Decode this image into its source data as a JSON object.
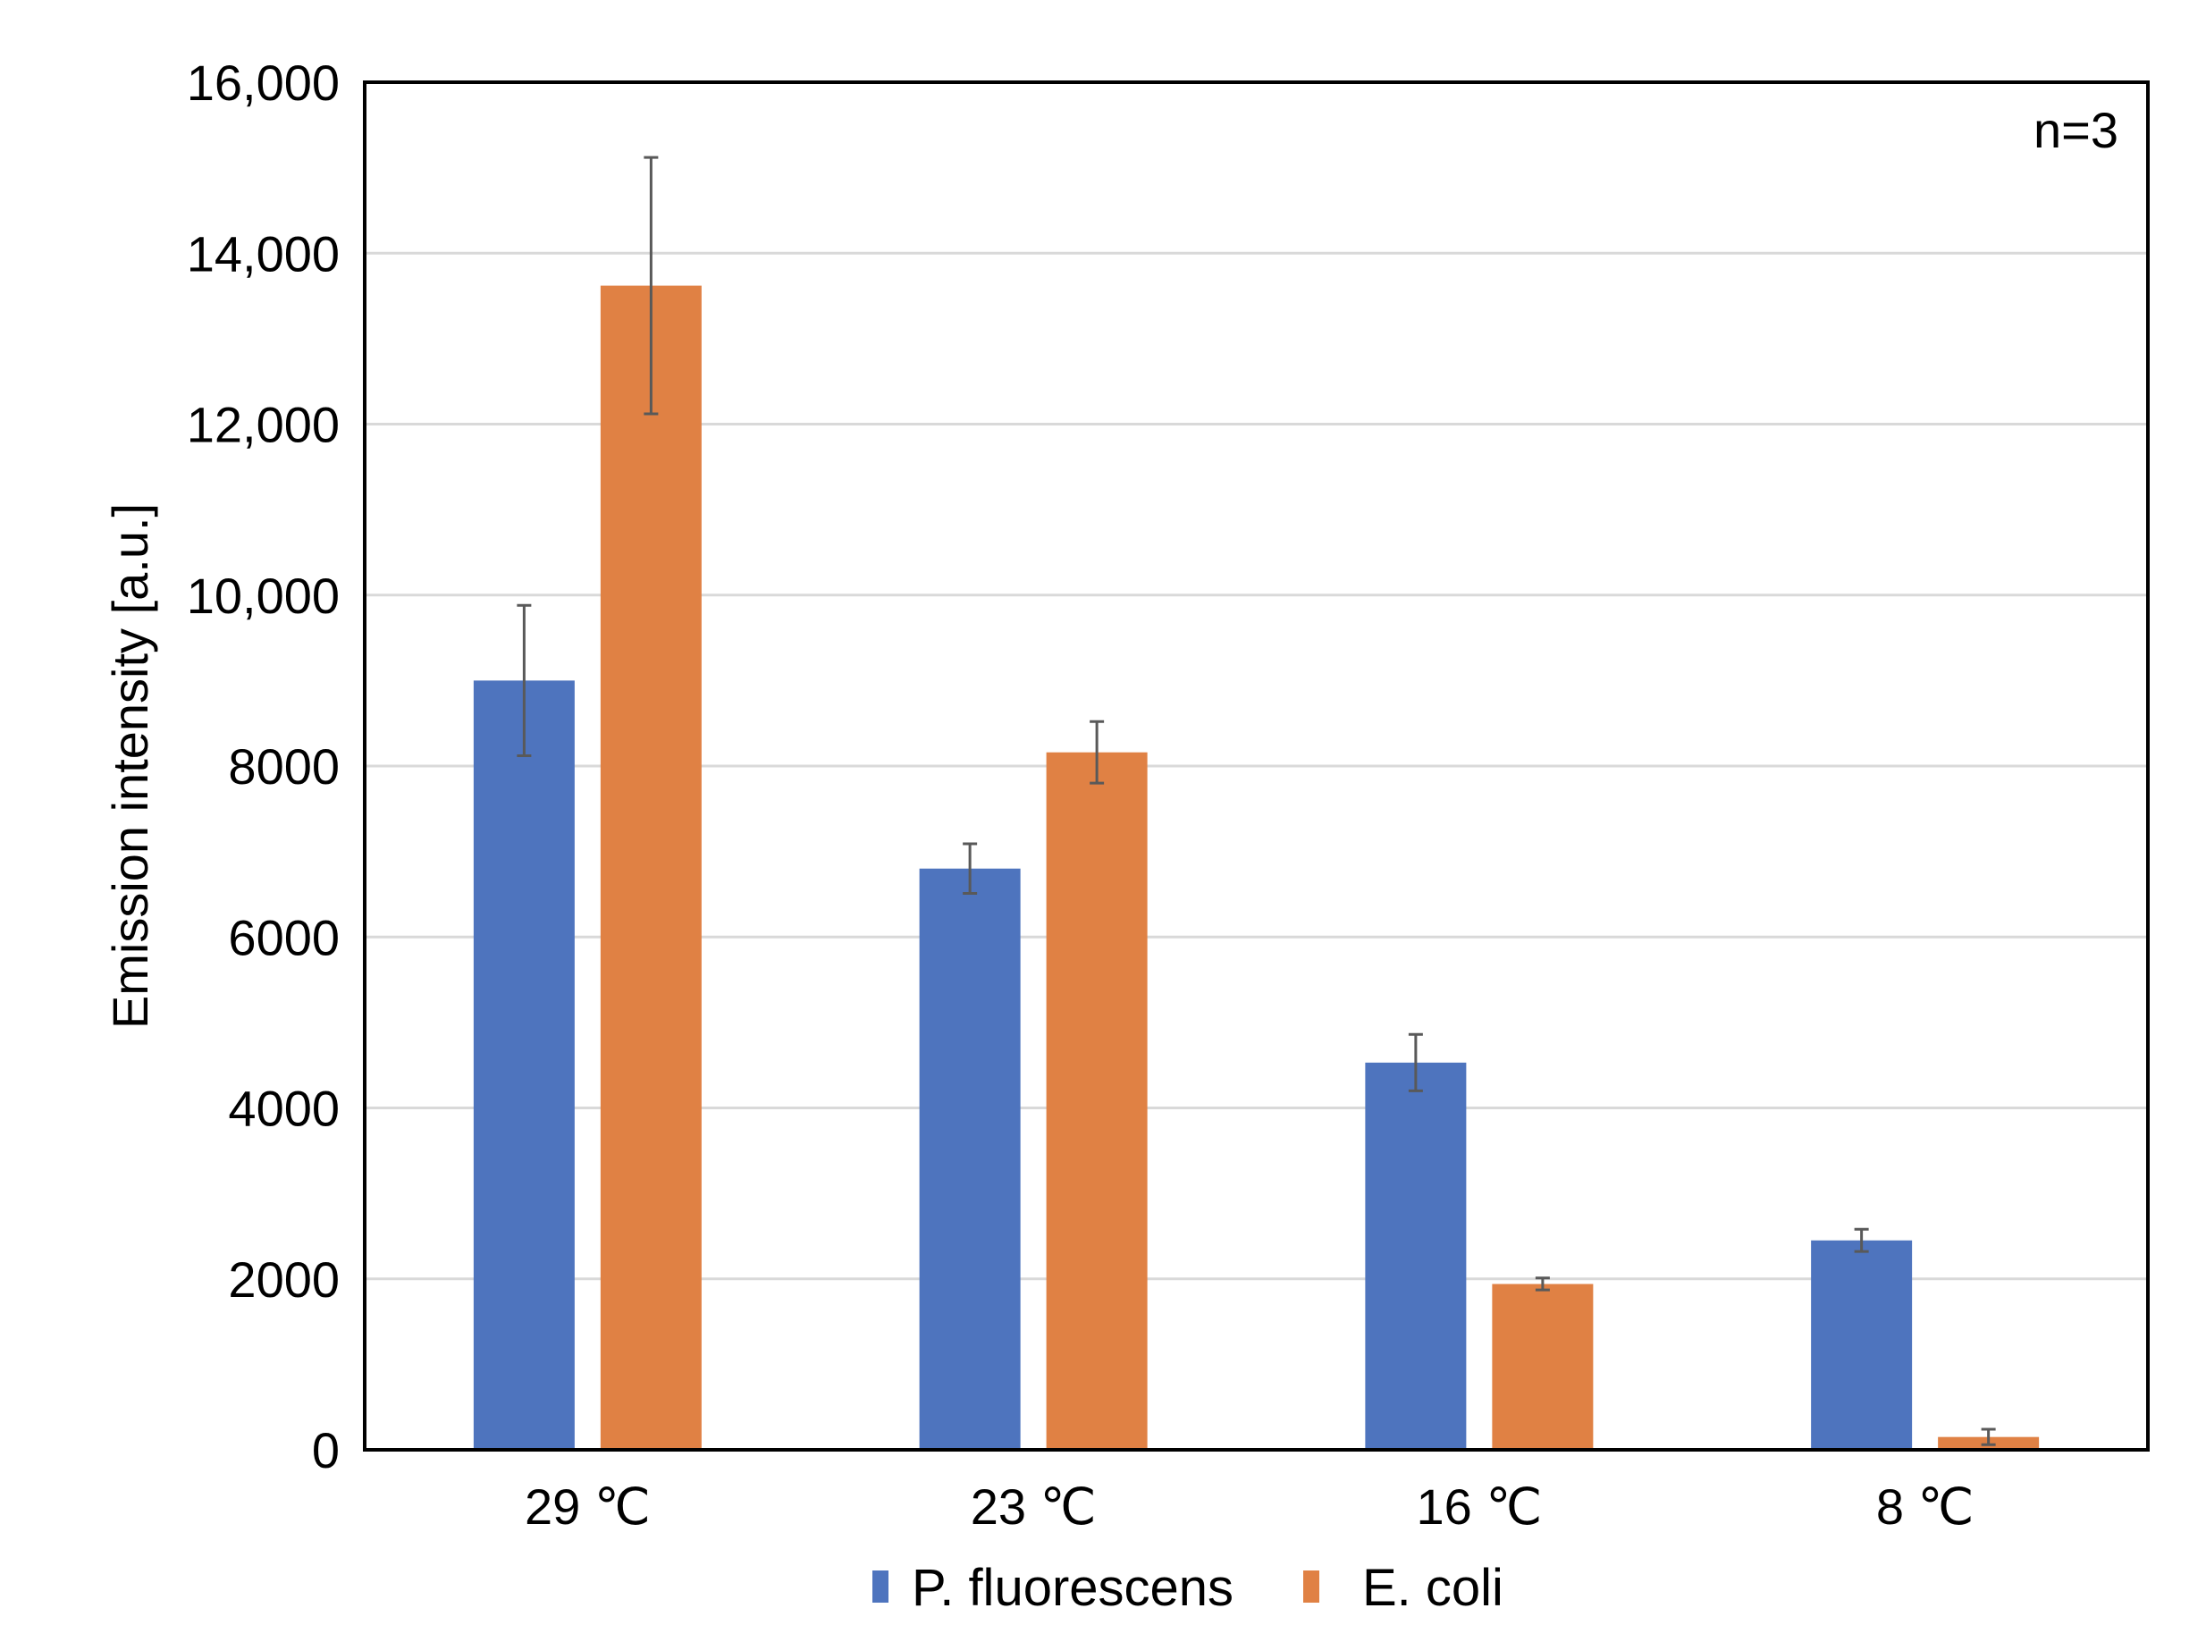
{
  "chart_data": {
    "type": "bar",
    "title": "",
    "xlabel": "",
    "ylabel": "Emission intensity [a.u.]",
    "ylim": [
      0,
      16000
    ],
    "yticks": [
      0,
      2000,
      4000,
      6000,
      8000,
      10000,
      12000,
      14000,
      16000
    ],
    "ytick_labels": [
      "0",
      "2000",
      "4000",
      "6000",
      "8000",
      "10,000",
      "12,000",
      "14,000",
      "16,000"
    ],
    "categories": [
      "29 ℃",
      "23 ℃",
      "16 ℃",
      "8 ℃"
    ],
    "series": [
      {
        "name": "P. fluorescens",
        "color": "#4e74be",
        "values": [
          9000,
          6800,
          4530,
          2450
        ],
        "errors": [
          880,
          290,
          330,
          130
        ]
      },
      {
        "name": "E. coli",
        "color": "#e08144",
        "values": [
          13620,
          8160,
          1940,
          150
        ],
        "errors": [
          1500,
          360,
          70,
          90
        ]
      }
    ],
    "grid": true,
    "legend": "bottom",
    "annotation": "n=3"
  }
}
